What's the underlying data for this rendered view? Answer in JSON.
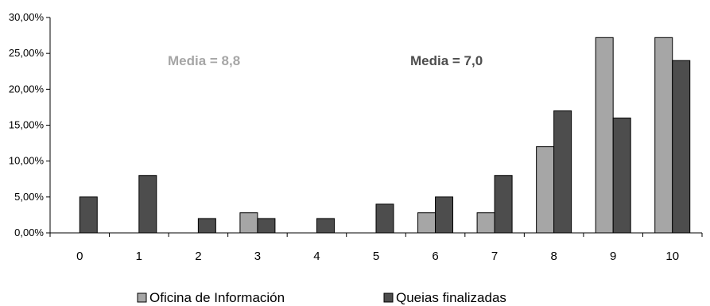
{
  "chart_data": {
    "type": "bar",
    "categories": [
      "0",
      "1",
      "2",
      "3",
      "4",
      "5",
      "6",
      "7",
      "8",
      "9",
      "10"
    ],
    "series": [
      {
        "name": "Oficina de Información",
        "color": "#a6a6a6",
        "values": [
          0,
          0,
          0,
          2.8,
          0,
          0,
          2.8,
          2.8,
          12.0,
          27.2,
          27.2
        ]
      },
      {
        "name": "Queias finalizadas",
        "color": "#4d4d4d",
        "values": [
          5.0,
          8.0,
          2.0,
          2.0,
          2.0,
          4.0,
          5.0,
          8.0,
          17.0,
          16.0,
          24.0
        ]
      }
    ],
    "ylim": [
      0,
      30
    ],
    "yticks": [
      "0,00%",
      "5,00%",
      "10,00%",
      "15,00%",
      "20,00%",
      "25,00%",
      "30,00%"
    ],
    "annotations": [
      {
        "text": "Media = 8,8",
        "color": "#a6a6a6"
      },
      {
        "text": "Media = 7,0",
        "color": "#4d4d4d"
      }
    ],
    "legend_position": "bottom",
    "grid": false
  }
}
